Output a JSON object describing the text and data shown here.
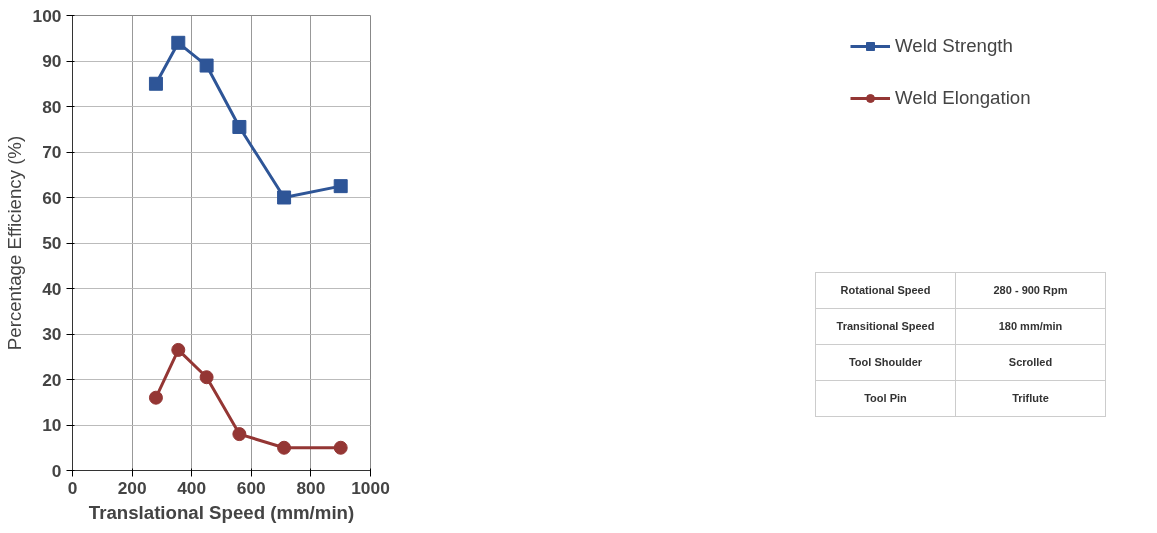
{
  "chart_data": {
    "type": "line",
    "xlabel": "Translational Speed (mm/min)",
    "ylabel": "Percentage Efficiency (%)",
    "x": [
      280,
      355,
      450,
      560,
      710,
      900
    ],
    "series": [
      {
        "name": "Weld Strength",
        "color": "#2e5597",
        "marker": "square",
        "values": [
          85,
          94,
          89,
          75.5,
          60,
          62.5
        ]
      },
      {
        "name": "Weld Elongation",
        "color": "#943634",
        "marker": "circle",
        "values": [
          16,
          26.5,
          20.5,
          8,
          5,
          5
        ]
      }
    ],
    "xlim": [
      0,
      1000
    ],
    "xticks": [
      0,
      200,
      400,
      600,
      800,
      1000
    ],
    "ylim": [
      0,
      100
    ],
    "yticks": [
      0,
      10,
      20,
      30,
      40,
      50,
      60,
      70,
      80,
      90,
      100
    ],
    "grid": true,
    "legend": "right",
    "line_style": "solid",
    "annotations": [
      "Rotational Speed",
      "280 - 900 Rpm",
      "Transitional Speed",
      "180 mm/min",
      "Tool Shoulder",
      "Scrolled",
      "Tool Pin",
      "Triflute"
    ]
  }
}
